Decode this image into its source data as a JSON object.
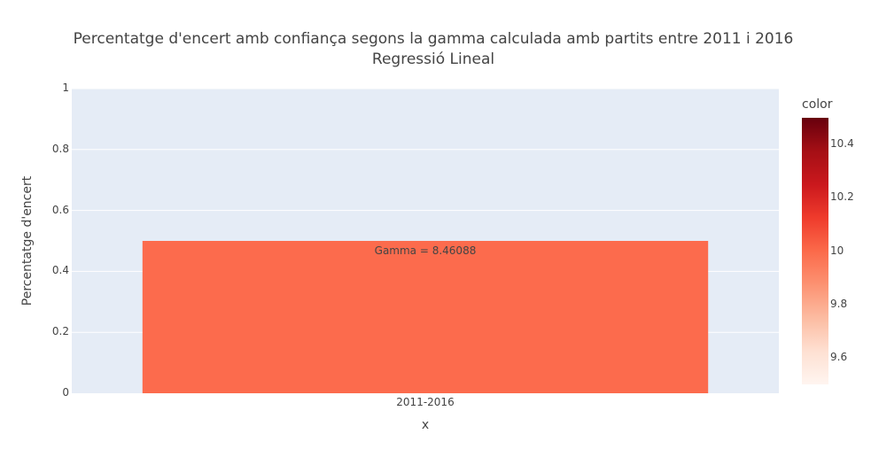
{
  "chart_data": {
    "type": "bar",
    "title": "Percentatge d'encert amb confiança segons la gamma calculada amb partits entre 2011 i 2016",
    "subtitle": "Regressió Lineal",
    "xlabel": "x",
    "ylabel": "Percentatge d'encert",
    "categories": [
      "2011-2016"
    ],
    "values": [
      0.5
    ],
    "bar_text": [
      "Gamma = 8.46088"
    ],
    "bar_colors": [
      "#fc6b4d"
    ],
    "ylim": [
      0,
      1
    ],
    "y_ticks": [
      "0",
      "0.2",
      "0.4",
      "0.6",
      "0.8",
      "1"
    ],
    "grid": true,
    "plot_bg": "#e5ecf6",
    "colorbar": {
      "title": "color",
      "colorscale": "Reds",
      "range": [
        9.5,
        10.5
      ],
      "ticks": [
        "9.6",
        "9.8",
        "10",
        "10.2",
        "10.4"
      ],
      "colors": [
        "#fff5f0",
        "#fee0d2",
        "#fcbba1",
        "#fc9272",
        "#fb6a4a",
        "#ef3b2c",
        "#cb181d",
        "#a50f15",
        "#67000d"
      ]
    }
  }
}
